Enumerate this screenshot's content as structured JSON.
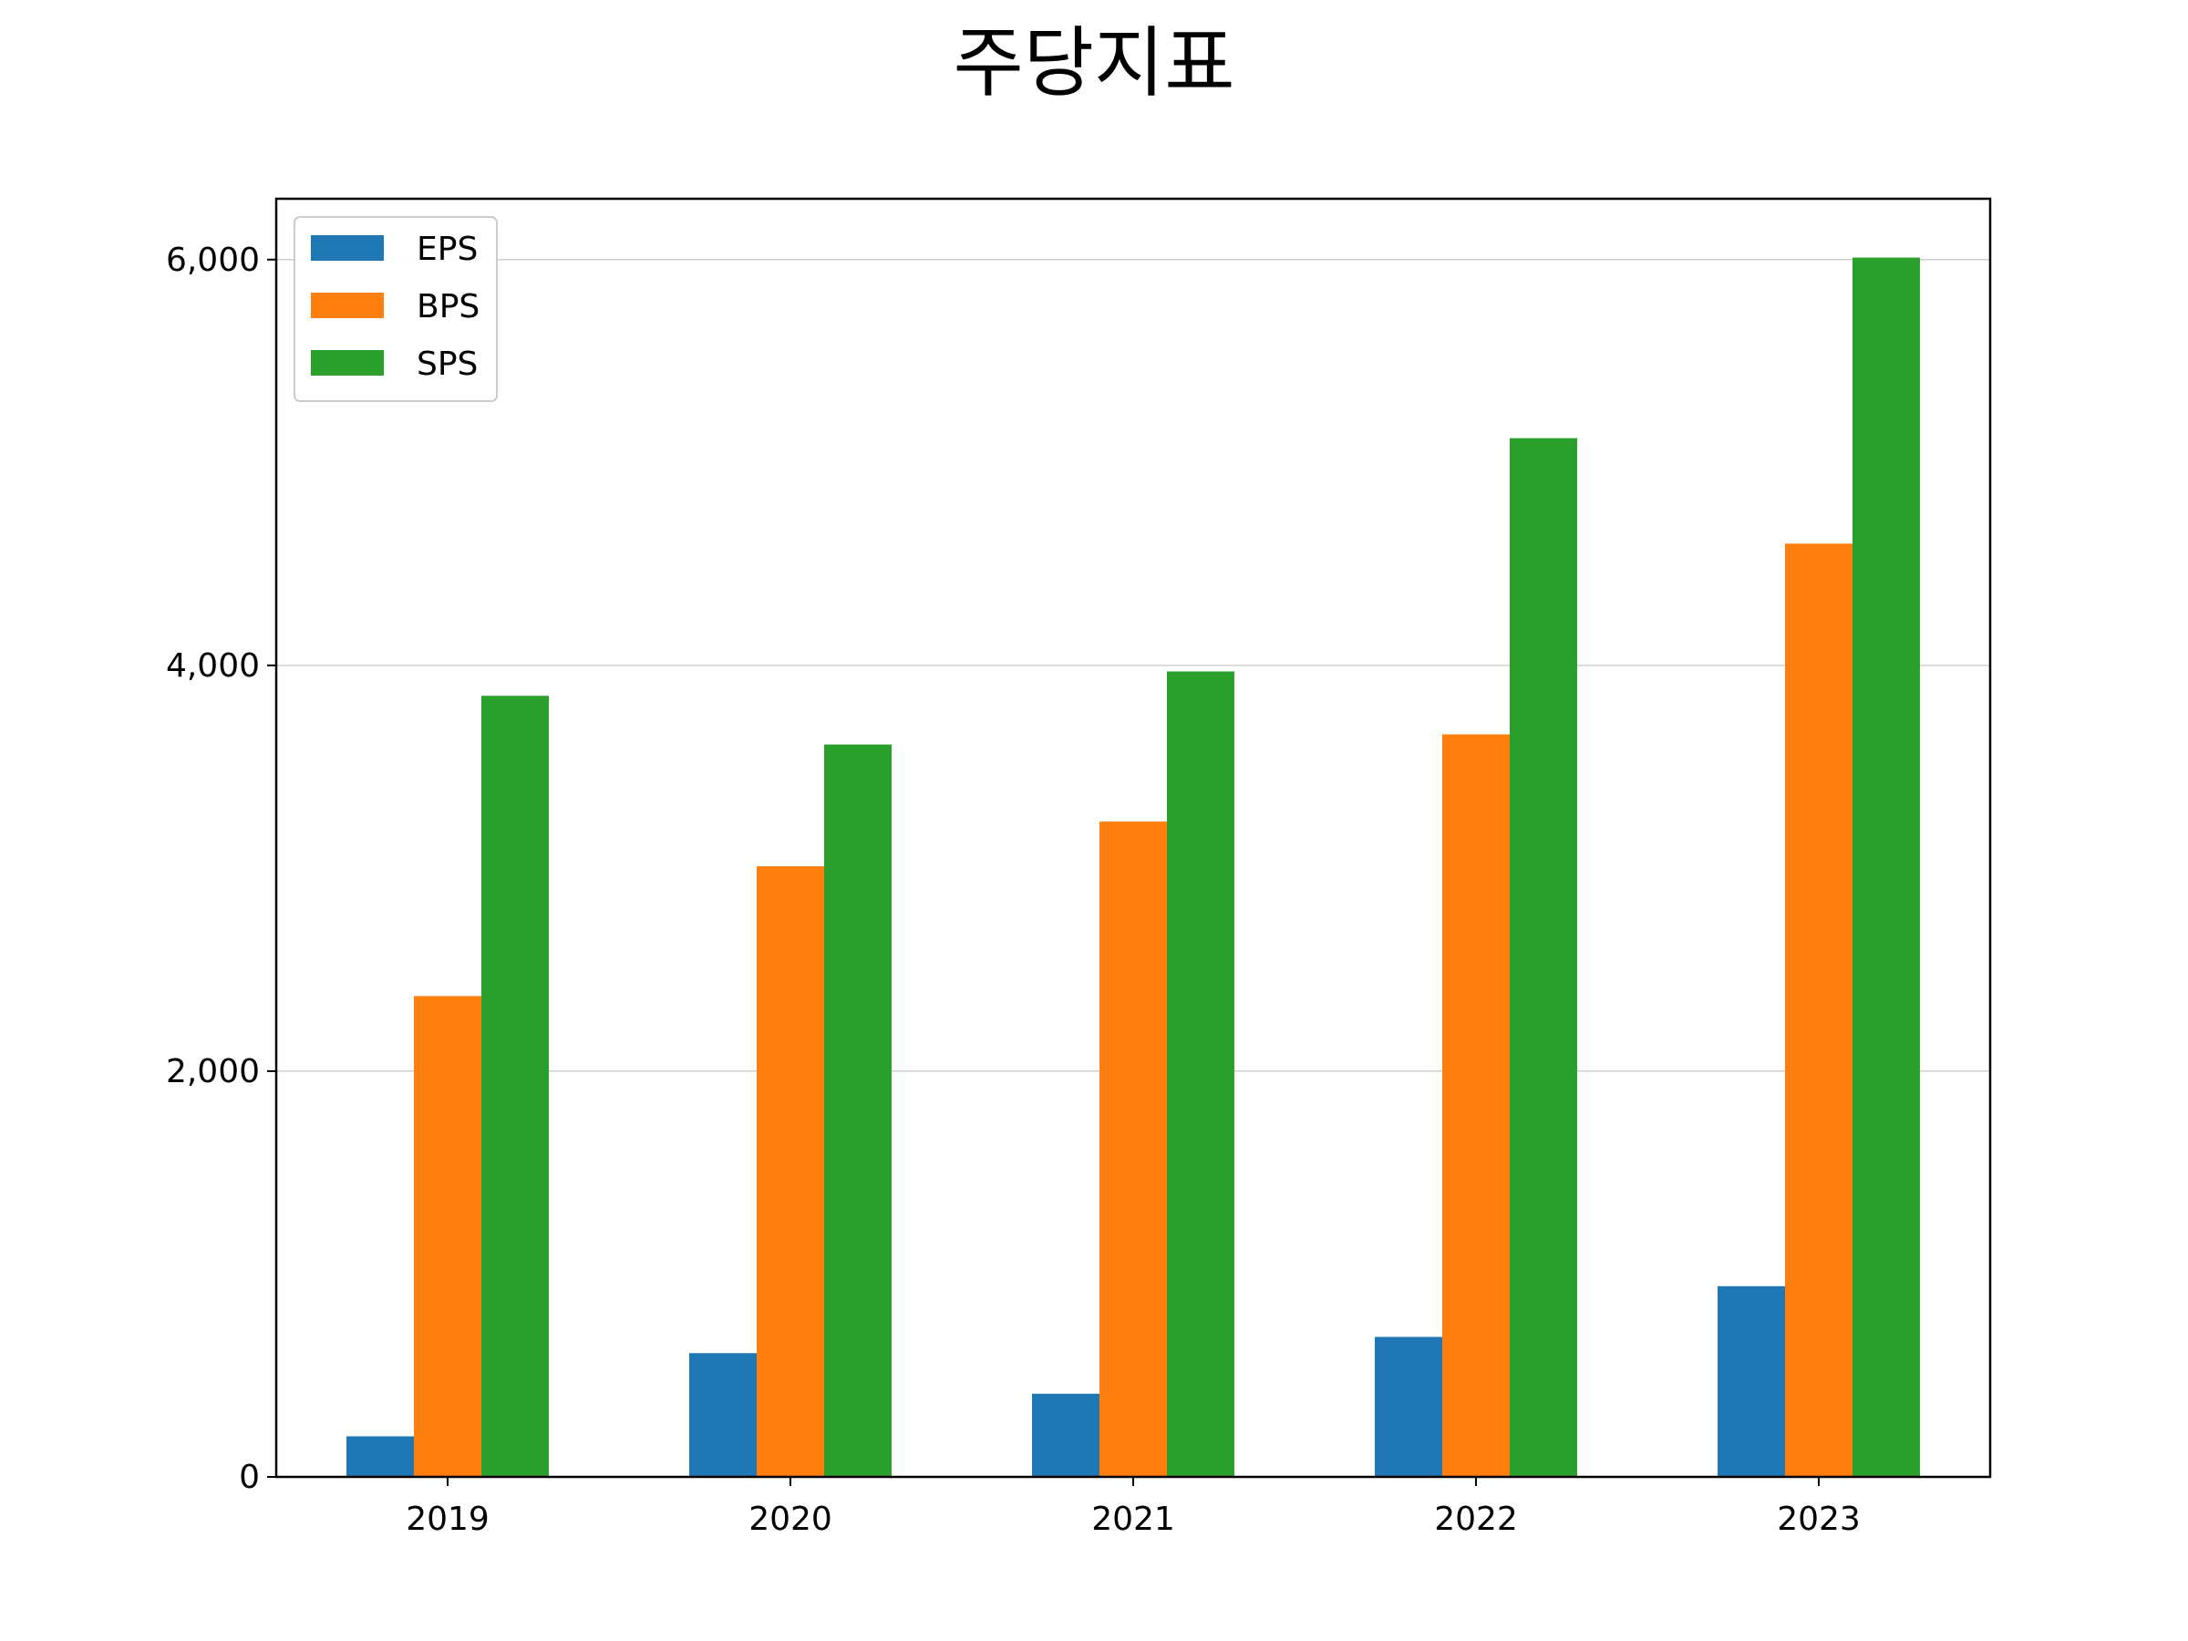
{
  "chart_data": {
    "type": "bar",
    "title": "주당지표",
    "xlabel": "",
    "ylabel": "",
    "categories": [
      "2019",
      "2020",
      "2021",
      "2022",
      "2023"
    ],
    "series": [
      {
        "name": "EPS",
        "color": "#1f77b4",
        "values": [
          200,
          610,
          410,
          690,
          940
        ]
      },
      {
        "name": "BPS",
        "color": "#ff7f0e",
        "values": [
          2370,
          3010,
          3230,
          3660,
          4600
        ]
      },
      {
        "name": "SPS",
        "color": "#2ca02c",
        "values": [
          3850,
          3610,
          3970,
          5120,
          6010
        ]
      }
    ],
    "ylim": [
      0,
      6300
    ],
    "yticks": [
      0,
      2000,
      4000,
      6000
    ],
    "ytick_labels": [
      "0",
      "2,000",
      "4,000",
      "6,000"
    ],
    "grid": "horizontal",
    "legend_position": "upper left"
  }
}
